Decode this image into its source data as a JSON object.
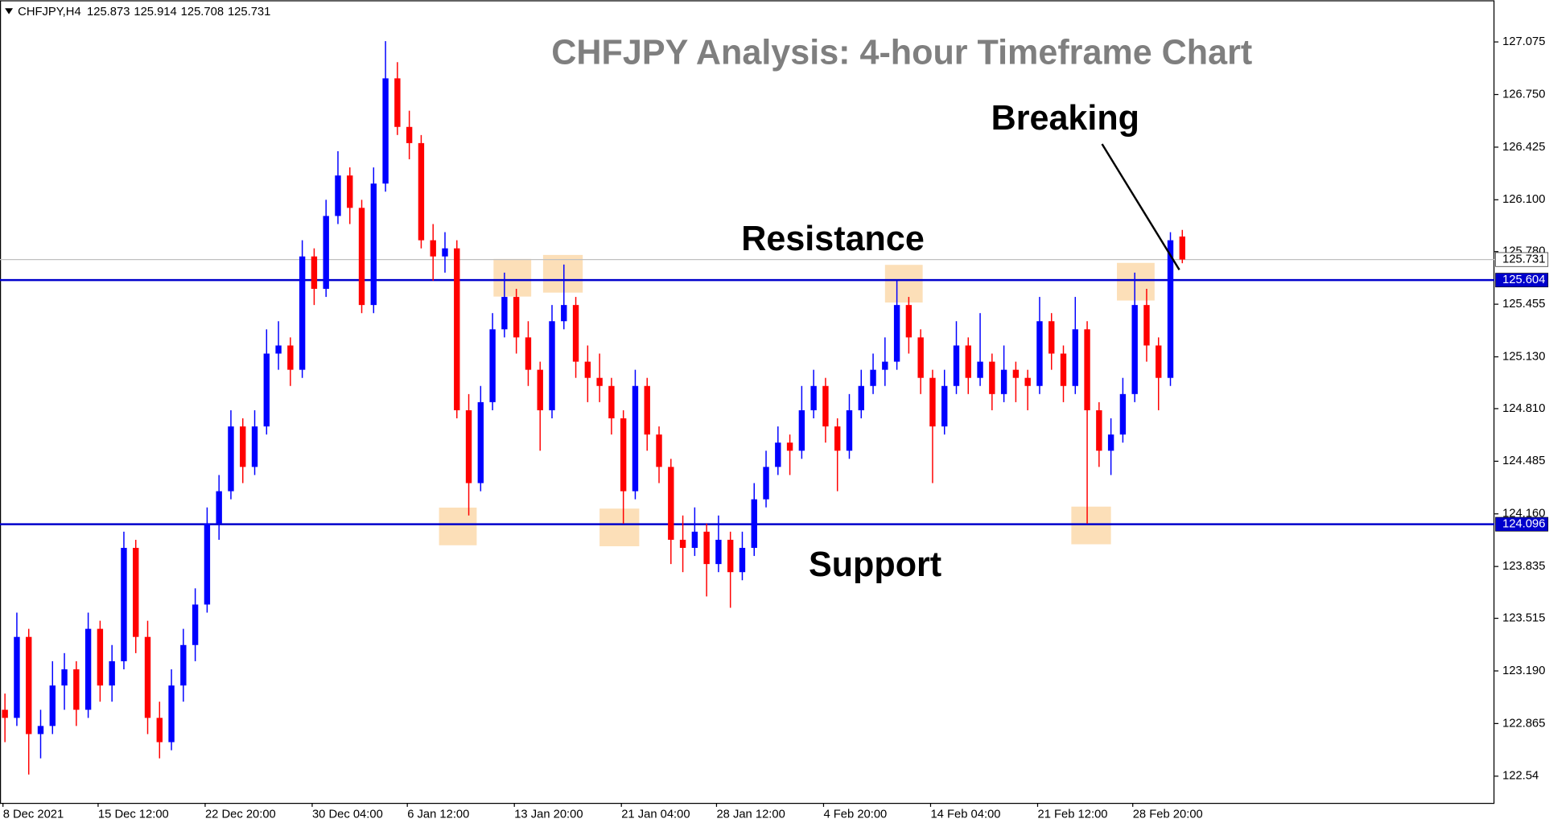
{
  "chart_data": {
    "type": "candlestick",
    "symbol": "CHFJPY,H4",
    "title": "CHFJPY Analysis: 4-hour Timeframe Chart",
    "annotations": {
      "breaking": "Breaking",
      "resistance": "Resistance",
      "support": "Support"
    },
    "up_color": "#0000ff",
    "down_color": "#ff0000",
    "ylim": [
      122.375,
      127.332
    ],
    "yticks": [
      127.075,
      {
        "value": 126.75,
        "label": "126.750"
      },
      126.425,
      {
        "value": 126.1,
        "label": "126.100"
      },
      {
        "value": 125.78,
        "label": "125.780"
      },
      125.455,
      {
        "value": 125.13,
        "label": "125.130"
      },
      {
        "value": 124.81,
        "label": "124.810"
      },
      124.485,
      {
        "value": 124.16,
        "label": "124.160"
      },
      123.835,
      123.515,
      {
        "value": 123.19,
        "label": "123.190"
      },
      122.865,
      122.54
    ],
    "xticks": [
      {
        "value": 0,
        "label": "8 Dec 2021"
      },
      {
        "value": 8,
        "label": "15 Dec 12:00"
      },
      {
        "value": 17,
        "label": "22 Dec 20:00"
      },
      {
        "value": 26,
        "label": "30 Dec 04:00"
      },
      {
        "value": 34,
        "label": "6 Jan 12:00"
      },
      {
        "value": 43,
        "label": "13 Jan 20:00"
      },
      {
        "value": 52,
        "label": "21 Jan 04:00"
      },
      {
        "value": 60,
        "label": "28 Jan 12:00"
      },
      {
        "value": 69,
        "label": "4 Feb 20:00"
      },
      {
        "value": 78,
        "label": "14 Feb 04:00"
      },
      {
        "value": 87,
        "label": "21 Feb 12:00"
      },
      {
        "value": 95,
        "label": "28 Feb 20:00"
      }
    ],
    "levels": [
      {
        "value": 125.604,
        "color": "#0000cc"
      },
      {
        "value": 124.096,
        "color": "#0000cc"
      }
    ],
    "last_price_color": "#c0c0c0",
    "candles": [
      [
        122.95,
        123.05,
        122.75,
        122.9
      ],
      [
        122.9,
        123.55,
        122.85,
        123.4
      ],
      [
        123.4,
        123.45,
        122.55,
        122.8
      ],
      [
        122.8,
        122.95,
        122.65,
        122.85
      ],
      [
        122.85,
        123.25,
        122.8,
        123.1
      ],
      [
        123.1,
        123.3,
        122.95,
        123.2
      ],
      [
        123.2,
        123.25,
        122.85,
        122.95
      ],
      [
        122.95,
        123.55,
        122.9,
        123.45
      ],
      [
        123.45,
        123.5,
        123.0,
        123.1
      ],
      [
        123.1,
        123.35,
        123.0,
        123.25
      ],
      [
        123.25,
        124.05,
        123.2,
        123.95
      ],
      [
        123.95,
        124.0,
        123.3,
        123.4
      ],
      [
        123.4,
        123.5,
        122.8,
        122.9
      ],
      [
        122.9,
        123.0,
        122.65,
        122.75
      ],
      [
        122.75,
        123.2,
        122.7,
        123.1
      ],
      [
        123.1,
        123.45,
        123.0,
        123.35
      ],
      [
        123.35,
        123.7,
        123.25,
        123.6
      ],
      [
        123.6,
        124.2,
        123.55,
        124.1
      ],
      [
        124.1,
        124.4,
        124.0,
        124.3
      ],
      [
        124.3,
        124.8,
        124.25,
        124.7
      ],
      [
        124.7,
        124.75,
        124.35,
        124.45
      ],
      [
        124.45,
        124.8,
        124.4,
        124.7
      ],
      [
        124.7,
        125.3,
        124.65,
        125.15
      ],
      [
        125.15,
        125.35,
        125.05,
        125.2
      ],
      [
        125.2,
        125.25,
        124.95,
        125.05
      ],
      [
        125.05,
        125.85,
        125.0,
        125.75
      ],
      [
        125.75,
        125.8,
        125.45,
        125.55
      ],
      [
        125.55,
        126.1,
        125.5,
        126.0
      ],
      [
        126.0,
        126.4,
        125.95,
        126.25
      ],
      [
        126.25,
        126.3,
        125.95,
        126.05
      ],
      [
        126.05,
        126.1,
        125.4,
        125.45
      ],
      [
        125.45,
        126.3,
        125.4,
        126.2
      ],
      [
        126.2,
        127.08,
        126.15,
        126.85
      ],
      [
        126.85,
        126.95,
        126.5,
        126.55
      ],
      [
        126.55,
        126.65,
        126.35,
        126.45
      ],
      [
        126.45,
        126.5,
        125.8,
        125.85
      ],
      [
        125.85,
        125.95,
        125.6,
        125.75
      ],
      [
        125.75,
        125.9,
        125.65,
        125.8
      ],
      [
        125.8,
        125.85,
        124.75,
        124.8
      ],
      [
        124.8,
        124.9,
        124.15,
        124.35
      ],
      [
        124.35,
        124.95,
        124.3,
        124.85
      ],
      [
        124.85,
        125.4,
        124.8,
        125.3
      ],
      [
        125.3,
        125.65,
        125.25,
        125.5
      ],
      [
        125.5,
        125.55,
        125.15,
        125.25
      ],
      [
        125.25,
        125.35,
        124.95,
        125.05
      ],
      [
        125.05,
        125.1,
        124.55,
        124.8
      ],
      [
        124.8,
        125.45,
        124.75,
        125.35
      ],
      [
        125.35,
        125.7,
        125.3,
        125.45
      ],
      [
        125.45,
        125.5,
        125.0,
        125.1
      ],
      [
        125.1,
        125.2,
        124.85,
        125.0
      ],
      [
        125.0,
        125.15,
        124.85,
        124.95
      ],
      [
        124.95,
        125.0,
        124.65,
        124.75
      ],
      [
        124.75,
        124.8,
        124.1,
        124.3
      ],
      [
        124.3,
        125.05,
        124.25,
        124.95
      ],
      [
        124.95,
        125.0,
        124.55,
        124.65
      ],
      [
        124.65,
        124.7,
        124.35,
        124.45
      ],
      [
        124.45,
        124.5,
        123.85,
        124.0
      ],
      [
        124.0,
        124.15,
        123.8,
        123.95
      ],
      [
        123.95,
        124.2,
        123.9,
        124.05
      ],
      [
        124.05,
        124.1,
        123.65,
        123.85
      ],
      [
        123.85,
        124.15,
        123.8,
        124.0
      ],
      [
        124.0,
        124.05,
        123.58,
        123.8
      ],
      [
        123.8,
        124.05,
        123.75,
        123.95
      ],
      [
        123.95,
        124.35,
        123.9,
        124.25
      ],
      [
        124.25,
        124.55,
        124.2,
        124.45
      ],
      [
        124.45,
        124.7,
        124.4,
        124.6
      ],
      [
        124.6,
        124.65,
        124.4,
        124.55
      ],
      [
        124.55,
        124.95,
        124.5,
        124.8
      ],
      [
        124.8,
        125.05,
        124.75,
        124.95
      ],
      [
        124.95,
        125.0,
        124.6,
        124.7
      ],
      [
        124.7,
        124.75,
        124.3,
        124.55
      ],
      [
        124.55,
        124.9,
        124.5,
        124.8
      ],
      [
        124.8,
        125.05,
        124.75,
        124.95
      ],
      [
        124.95,
        125.15,
        124.9,
        125.05
      ],
      [
        125.05,
        125.25,
        124.95,
        125.1
      ],
      [
        125.1,
        125.6,
        125.05,
        125.45
      ],
      [
        125.45,
        125.5,
        125.15,
        125.25
      ],
      [
        125.25,
        125.3,
        124.9,
        125.0
      ],
      [
        125.0,
        125.05,
        124.35,
        124.7
      ],
      [
        124.7,
        125.05,
        124.65,
        124.95
      ],
      [
        124.95,
        125.35,
        124.9,
        125.2
      ],
      [
        125.2,
        125.25,
        124.9,
        125.0
      ],
      [
        125.0,
        125.4,
        124.95,
        125.1
      ],
      [
        125.1,
        125.15,
        124.8,
        124.9
      ],
      [
        124.9,
        125.2,
        124.85,
        125.05
      ],
      [
        125.05,
        125.1,
        124.85,
        125.0
      ],
      [
        125.0,
        125.05,
        124.8,
        124.95
      ],
      [
        124.95,
        125.5,
        124.9,
        125.35
      ],
      [
        125.35,
        125.4,
        125.05,
        125.15
      ],
      [
        125.15,
        125.2,
        124.85,
        124.95
      ],
      [
        124.95,
        125.5,
        124.9,
        125.3
      ],
      [
        125.3,
        125.35,
        124.1,
        124.8
      ],
      [
        124.8,
        124.85,
        124.45,
        124.55
      ],
      [
        124.55,
        124.75,
        124.4,
        124.65
      ],
      [
        124.65,
        125.0,
        124.6,
        124.9
      ],
      [
        124.9,
        125.65,
        124.85,
        125.45
      ],
      [
        125.45,
        125.55,
        125.1,
        125.2
      ],
      [
        125.2,
        125.25,
        124.8,
        125.0
      ],
      [
        125.0,
        125.9,
        124.95,
        125.85
      ],
      [
        125.873,
        125.914,
        125.708,
        125.731
      ]
    ]
  }
}
